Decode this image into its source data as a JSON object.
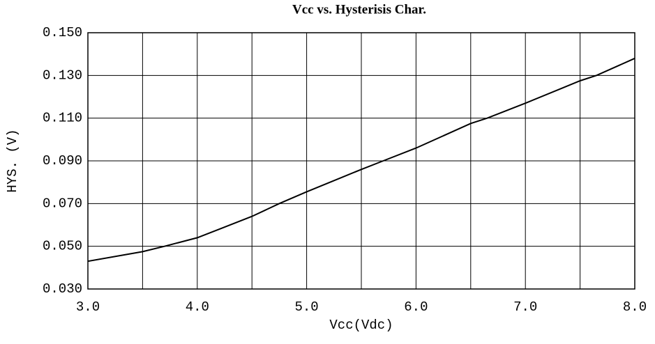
{
  "chart_data": {
    "type": "line",
    "title": "Vcc vs. Hysterisis Char.",
    "x_label": "Vcc(Vdc)",
    "y_label": "HYS. (V)",
    "x": [
      3.0,
      3.5,
      3.7,
      4.0,
      4.2,
      4.5,
      4.75,
      5.0,
      5.5,
      5.7,
      6.0,
      6.5,
      6.65,
      7.0,
      7.5,
      7.65,
      8.0
    ],
    "series": [
      {
        "color": "#000000",
        "values": [
          0.043,
          0.0475,
          0.05,
          0.054,
          0.058,
          0.064,
          0.07,
          0.0755,
          0.086,
          0.09,
          0.096,
          0.1075,
          0.11,
          0.117,
          0.1275,
          0.13,
          0.138
        ]
      }
    ],
    "xlim": [
      3,
      8
    ],
    "xticks": [
      {
        "value": 3,
        "label": "3.0"
      },
      {
        "value": 4,
        "label": "4.0"
      },
      {
        "value": 5,
        "label": "5.0"
      },
      {
        "value": 6,
        "label": "6.0"
      },
      {
        "value": 7,
        "label": "7.0"
      },
      {
        "value": 8,
        "label": "8.0"
      }
    ],
    "minor_xticks": [
      3.5,
      4.5,
      5.5,
      6.5,
      7.5
    ],
    "ylim": [
      0.03,
      0.15
    ],
    "yticks": [
      {
        "value": 0.03,
        "label": "0.030"
      },
      {
        "value": 0.05,
        "label": "0.050"
      },
      {
        "value": 0.07,
        "label": "0.070"
      },
      {
        "value": 0.09,
        "label": "0.090"
      },
      {
        "value": 0.11,
        "label": "0.110"
      },
      {
        "value": 0.13,
        "label": "0.130"
      },
      {
        "value": 0.15,
        "label": "0.150"
      }
    ],
    "grid": true
  }
}
